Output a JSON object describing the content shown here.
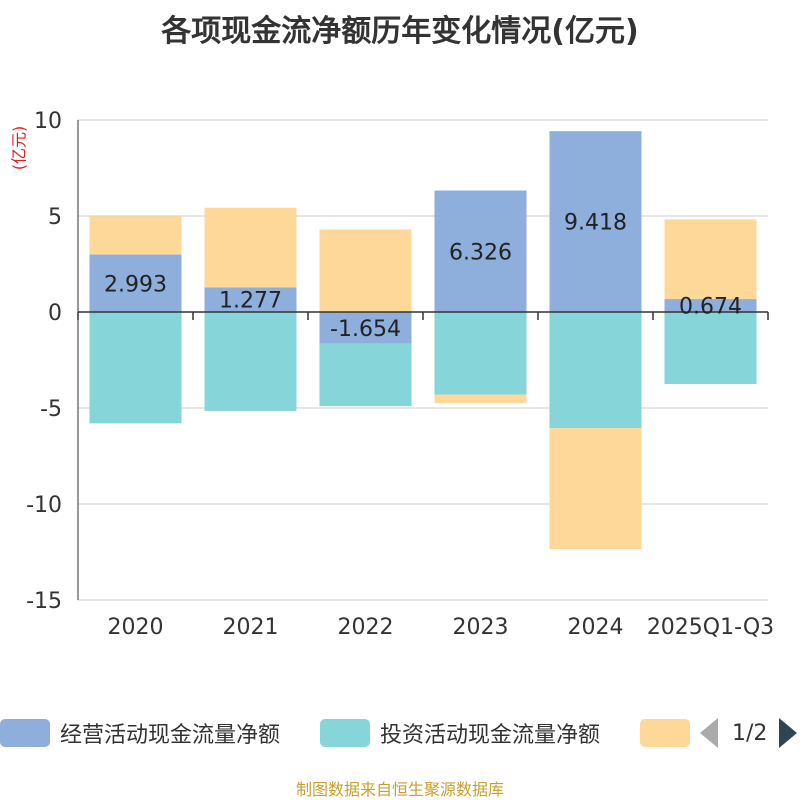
{
  "chart_data": {
    "type": "bar",
    "stacked": true,
    "title": "各项现金流净额历年变化情况(亿元)",
    "ylabel": "(亿元)",
    "xlabel": "",
    "categories": [
      "2020",
      "2021",
      "2022",
      "2023",
      "2024",
      "2025Q1-Q3"
    ],
    "ylim": [
      -15,
      10
    ],
    "yticks": [
      10,
      5,
      0,
      -5,
      -10,
      -15
    ],
    "series": [
      {
        "name": "经营活动现金流量净额",
        "color": "#8eaedb",
        "values": [
          2.993,
          1.277,
          -1.654,
          6.326,
          9.418,
          0.674
        ],
        "show_labels": true
      },
      {
        "name": "投资活动现金流量净额",
        "color": "#86d5d8",
        "values": [
          -5.8,
          -5.15,
          -3.25,
          -4.3,
          -6.05,
          -3.75
        ],
        "show_labels": false
      },
      {
        "name": "",
        "color": "#fdd898",
        "values": [
          2.0,
          4.15,
          4.3,
          -0.45,
          -6.3,
          4.15
        ],
        "show_labels": false
      }
    ],
    "legend": {
      "position": "bottom",
      "page_text": "1/2"
    },
    "grid": true
  },
  "source": "制图数据来自恒生聚源数据库"
}
